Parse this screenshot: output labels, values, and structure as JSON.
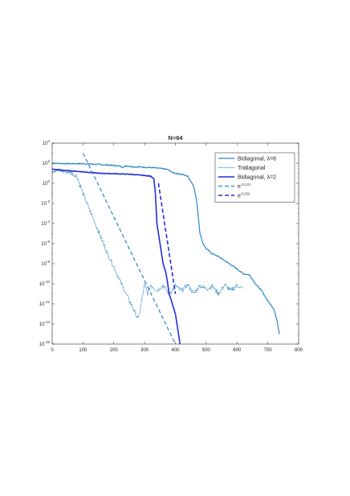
{
  "chart_data": {
    "type": "line",
    "title": "N=64",
    "xlabel": "",
    "ylabel": "",
    "xlim": [
      0,
      800
    ],
    "ylim": [
      1e-16,
      10000
    ],
    "yscale": "log",
    "grid": false,
    "legend_position": "top-right",
    "x_ticks": [
      {
        "value": 0,
        "label": "0"
      },
      {
        "value": 100,
        "label": "100"
      },
      {
        "value": 200,
        "label": "200"
      },
      {
        "value": 300,
        "label": "300"
      },
      {
        "value": 400,
        "label": "400"
      },
      {
        "value": 500,
        "label": "500"
      },
      {
        "value": 600,
        "label": "600"
      },
      {
        "value": 700,
        "label": "700"
      },
      {
        "value": 800,
        "label": "800"
      }
    ],
    "y_ticks": [
      {
        "value": 1e-16,
        "base": "10",
        "exp": "-16"
      },
      {
        "value": 1e-14,
        "base": "10",
        "exp": "-14"
      },
      {
        "value": 1e-12,
        "base": "10",
        "exp": "-12"
      },
      {
        "value": 1e-10,
        "base": "10",
        "exp": "-10"
      },
      {
        "value": 1e-08,
        "base": "10",
        "exp": "-8"
      },
      {
        "value": 1e-06,
        "base": "10",
        "exp": "-6"
      },
      {
        "value": 0.0001,
        "base": "10",
        "exp": "-4"
      },
      {
        "value": 0.01,
        "base": "10",
        "exp": "-2"
      },
      {
        "value": 1,
        "base": "10",
        "exp": "0"
      },
      {
        "value": 100,
        "base": "10",
        "exp": "2"
      },
      {
        "value": 10000,
        "base": "10",
        "exp": "4"
      }
    ],
    "series": [
      {
        "legend": {
          "base": "Bidiagonal, λ=8",
          "sup": ""
        },
        "color": "#2e86c1",
        "style": "solid",
        "width": 1.2,
        "jitter": 0.06,
        "x": [
          0,
          50,
          100,
          150,
          200,
          220,
          230,
          240,
          260,
          300,
          330,
          350,
          370,
          380,
          390,
          400,
          420,
          440,
          460,
          470,
          480,
          490,
          500,
          520,
          540,
          560,
          580,
          600,
          620,
          640,
          660,
          680,
          700,
          720,
          730,
          738
        ],
        "y": [
          100,
          90,
          90,
          75,
          60,
          50,
          40,
          55,
          45,
          40,
          35,
          30,
          25,
          20,
          12,
          10,
          8,
          5,
          0.5,
          0.01,
          1e-05,
          1e-06,
          3e-07,
          1e-07,
          5e-08,
          2e-08,
          8e-09,
          3e-09,
          1e-09,
          8e-10,
          1e-10,
          2e-11,
          2e-12,
          3e-13,
          2e-14,
          1e-15
        ]
      },
      {
        "legend": {
          "base": "Tridiagonal",
          "sup": ""
        },
        "color": "#2e86c1",
        "style": "dotted",
        "width": 1.2,
        "jitter": 0.22,
        "x": [
          0,
          20,
          40,
          60,
          80,
          100,
          120,
          140,
          160,
          180,
          200,
          220,
          240,
          260,
          280,
          300,
          310,
          320,
          340,
          360,
          380,
          400,
          420,
          440,
          460,
          480,
          500,
          520,
          540,
          560,
          580,
          600,
          620
        ],
        "y": [
          20,
          18,
          15,
          12,
          5,
          0.1,
          0.003,
          0.0001,
          3e-06,
          1e-07,
          5e-09,
          2e-10,
          1e-11,
          5e-13,
          3e-14,
          8e-11,
          1e-11,
          8e-11,
          2e-11,
          7e-11,
          1e-11,
          6e-11,
          2e-11,
          8e-11,
          1e-11,
          7e-11,
          3e-11,
          6e-11,
          1e-11,
          8e-11,
          2e-11,
          7e-11,
          3e-11
        ]
      },
      {
        "legend": {
          "base": "Bidiagonal, λ=2",
          "sup": ""
        },
        "color": "#1f2ed9",
        "style": "solid",
        "width": 1.6,
        "jitter": 0.03,
        "x": [
          0,
          50,
          100,
          150,
          200,
          250,
          300,
          320,
          330,
          335,
          340,
          350,
          360,
          370,
          380,
          390,
          400,
          410,
          415
        ],
        "y": [
          25,
          18,
          14,
          10,
          9,
          8,
          6,
          5,
          3,
          0.1,
          0.0001,
          1e-06,
          1e-08,
          1e-09,
          1e-11,
          1e-12,
          1e-13,
          1e-15,
          1e-16
        ]
      },
      {
        "legend": {
          "base": "e",
          "sup": "-0.13 t"
        },
        "color": "#2e86c1",
        "style": "dashed",
        "width": 1.2,
        "jitter": 0,
        "x": [
          100,
          400
        ],
        "y": [
          1000,
          1e-16
        ]
      },
      {
        "legend": {
          "base": "e",
          "sup": "-0.51t"
        },
        "color": "#1f2ed9",
        "style": "dashed",
        "width": 1.6,
        "jitter": 0,
        "x": [
          345,
          400
        ],
        "y": [
          1,
          1e-11
        ]
      }
    ]
  }
}
